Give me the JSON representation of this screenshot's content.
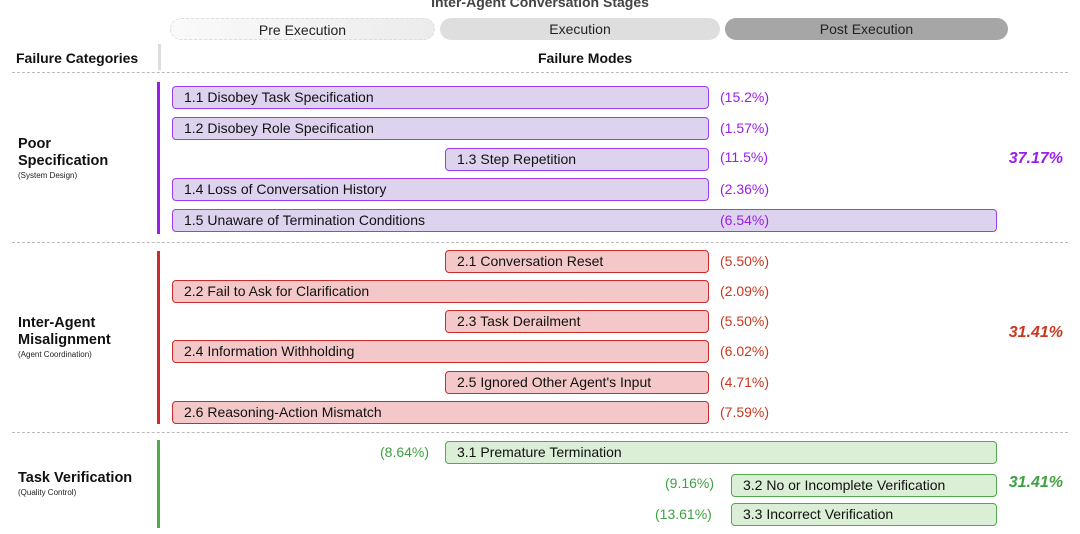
{
  "title": "Inter-Agent Conversation Stages",
  "stages": [
    "Pre Execution",
    "Execution",
    "Post Execution"
  ],
  "headers": {
    "categories": "Failure Categories",
    "modes": "Failure Modes"
  },
  "colors": {
    "purple": "#9a1ee8",
    "red": "#c9381e",
    "green": "#3fa043"
  },
  "categories": [
    {
      "title_line1": "Poor",
      "title_line2": "Specification",
      "subtitle": "(System Design)",
      "total": "37.17%",
      "modes": [
        {
          "label": "1.1 Disobey Task Specification",
          "percent": "(15.2%)"
        },
        {
          "label": "1.2 Disobey Role Specification",
          "percent": "(1.57%)"
        },
        {
          "label": "1.3 Step Repetition",
          "percent": "(11.5%)"
        },
        {
          "label": "1.4 Loss of Conversation History",
          "percent": "(2.36%)"
        },
        {
          "label": "1.5 Unaware of Termination Conditions",
          "percent": "(6.54%)"
        }
      ]
    },
    {
      "title_line1": "Inter-Agent",
      "title_line2": "Misalignment",
      "subtitle": "(Agent Coordination)",
      "total": "31.41%",
      "modes": [
        {
          "label": "2.1 Conversation Reset",
          "percent": "(5.50%)"
        },
        {
          "label": "2.2 Fail to Ask for Clarification",
          "percent": "(2.09%)"
        },
        {
          "label": "2.3 Task Derailment",
          "percent": "(5.50%)"
        },
        {
          "label": "2.4 Information Withholding",
          "percent": "(6.02%)"
        },
        {
          "label": "2.5 Ignored Other Agent's Input",
          "percent": "(4.71%)"
        },
        {
          "label": "2.6 Reasoning-Action Mismatch",
          "percent": "(7.59%)"
        }
      ]
    },
    {
      "title_line1": "Task Verification",
      "subtitle": "(Quality Control)",
      "total": "31.41%",
      "modes": [
        {
          "label": "3.1  Premature Termination",
          "percent": "(8.64%)"
        },
        {
          "label": "3.2 No or Incomplete Verification",
          "percent": "(9.16%)"
        },
        {
          "label": "3.3 Incorrect Verification",
          "percent": "(13.61%)"
        }
      ]
    }
  ]
}
